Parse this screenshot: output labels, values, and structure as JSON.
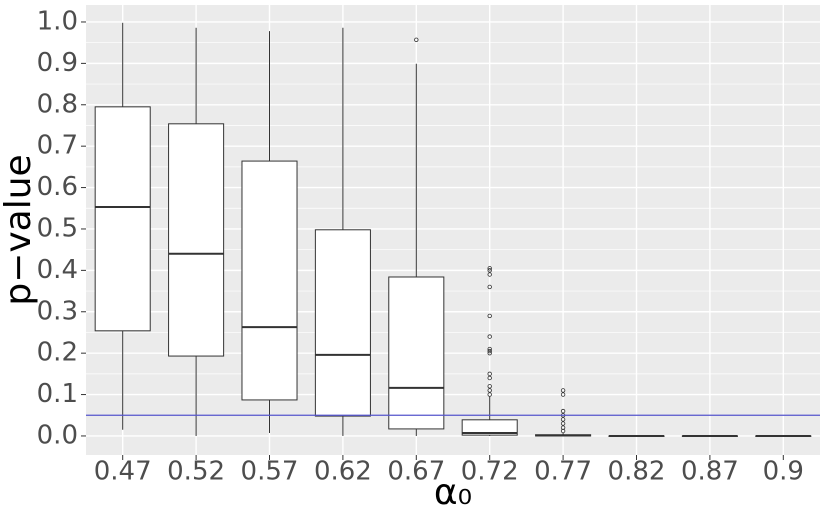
{
  "chart_data": {
    "type": "box",
    "ylabel": "p−value",
    "xlabel": "α₀",
    "categories": [
      "0.47",
      "0.52",
      "0.57",
      "0.62",
      "0.67",
      "0.72",
      "0.77",
      "0.82",
      "0.87",
      "0.9"
    ],
    "boxes": [
      {
        "min": 0.015,
        "q1": 0.254,
        "median": 0.553,
        "q3": 0.795,
        "max": 0.998,
        "outliers": []
      },
      {
        "min": 0.0,
        "q1": 0.193,
        "median": 0.44,
        "q3": 0.754,
        "max": 0.986,
        "outliers": []
      },
      {
        "min": 0.007,
        "q1": 0.087,
        "median": 0.263,
        "q3": 0.664,
        "max": 0.978,
        "outliers": []
      },
      {
        "min": 0.0,
        "q1": 0.048,
        "median": 0.196,
        "q3": 0.498,
        "max": 0.986,
        "outliers": []
      },
      {
        "min": 0.0,
        "q1": 0.017,
        "median": 0.116,
        "q3": 0.384,
        "max": 0.899,
        "outliers": [
          0.957
        ]
      },
      {
        "min": 0.0,
        "q1": 0.002,
        "median": 0.007,
        "q3": 0.039,
        "max": 0.095,
        "outliers": [
          0.405,
          0.4,
          0.39,
          0.36,
          0.29,
          0.24,
          0.21,
          0.205,
          0.2,
          0.15,
          0.14,
          0.12,
          0.11,
          0.1
        ]
      },
      {
        "min": 0.0,
        "q1": 0.0,
        "median": 0.001,
        "q3": 0.003,
        "max": 0.007,
        "outliers": [
          0.11,
          0.1,
          0.06,
          0.05,
          0.04,
          0.03,
          0.02,
          0.012
        ]
      },
      {
        "min": 0.0,
        "q1": 0.0,
        "median": 0.0,
        "q3": 0.0,
        "max": 0.001,
        "outliers": []
      },
      {
        "min": 0.0,
        "q1": 0.0,
        "median": 0.0,
        "q3": 0.0,
        "max": 0.0,
        "outliers": []
      },
      {
        "min": 0.0,
        "q1": 0.0,
        "median": 0.0,
        "q3": 0.0,
        "max": 0.0,
        "outliers": []
      }
    ],
    "hline": {
      "value": 0.05,
      "color": "#5555cc"
    },
    "ylim": [
      -0.046,
      1.041
    ],
    "yticks": [
      {
        "value": 0,
        "label": "0.0"
      },
      0.1,
      0.2,
      0.3,
      0.4,
      0.5,
      0.6,
      0.7,
      0.8,
      0.9,
      {
        "value": 1,
        "label": "1.0"
      }
    ],
    "grid": true,
    "panel_color": "#ebebeb",
    "box_fill": "#ffffff",
    "line_color": "#333333"
  }
}
